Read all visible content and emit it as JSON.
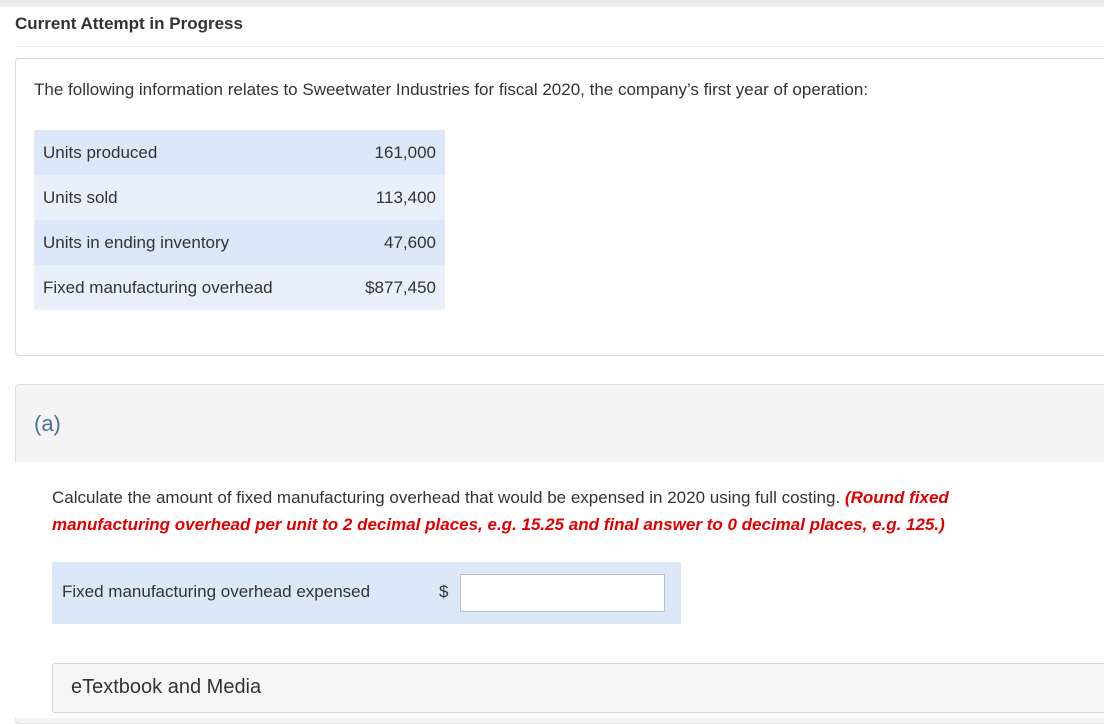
{
  "header": {
    "title": "Current Attempt in Progress"
  },
  "problem": {
    "intro": "The following information relates to Sweetwater Industries for fiscal 2020, the company’s first year of operation:",
    "rows": [
      {
        "label": "Units produced",
        "value": "161,000"
      },
      {
        "label": "Units sold",
        "value": "113,400"
      },
      {
        "label": "Units in ending inventory",
        "value": "47,600"
      },
      {
        "label": "Fixed manufacturing overhead",
        "value": "$877,450"
      }
    ]
  },
  "part_a": {
    "label": "(a)",
    "question": "Calculate the amount of fixed manufacturing overhead that would be expensed in 2020 using full costing.",
    "hint": "(Round fixed manufacturing overhead per unit to 2 decimal places, e.g. 15.25 and final answer to 0 decimal places, e.g. 125.)",
    "answer_label": "Fixed manufacturing overhead expensed",
    "currency": "$",
    "answer_value": ""
  },
  "resources": {
    "label": "eTextbook and Media"
  }
}
